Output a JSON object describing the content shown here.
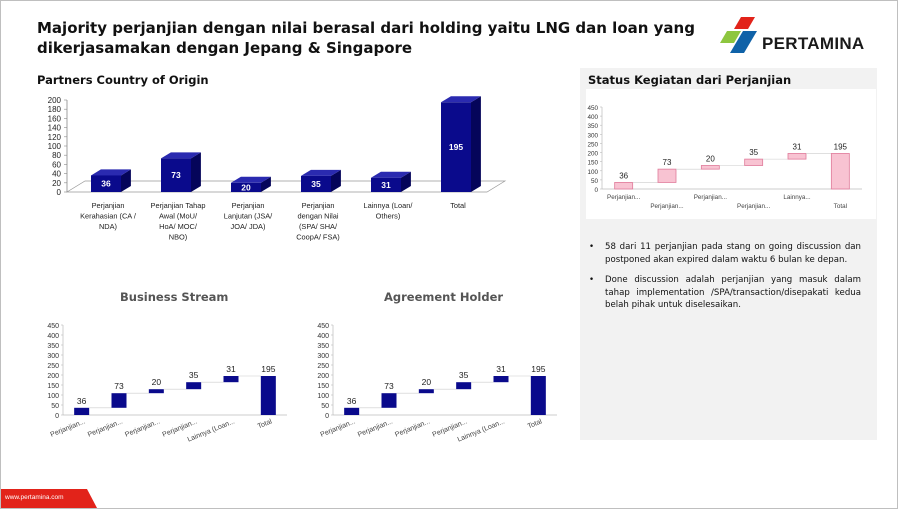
{
  "title": "Majority perjanjian dengan nilai berasal dari holding yaitu LNG dan loan yang dikerjasamakan dengan Jepang & Singapore",
  "logo": {
    "text": "PERTAMINA",
    "colors": {
      "red": "#e2231a",
      "green": "#8dc63f",
      "blue": "#0f62a8"
    }
  },
  "footer": {
    "url": "www.pertamina.com",
    "color": "#e2231a"
  },
  "bullets": [
    "58 dari 11 perjanjian pada stang on going discussion dan postponed akan expired dalam waktu 6 bulan ke depan.",
    "Done discussion adalah perjanjian yang masuk dalam tahap implementation /SPA/transaction/disepakati kedua belah pihak untuk diselesaikan."
  ],
  "chart_data": [
    {
      "type": "bar",
      "title": "Partners Country of Origin",
      "categories": [
        [
          "Perjanjian",
          "Kerahasian (CA /",
          "NDA)"
        ],
        [
          "Perjanjian Tahap",
          "Awal (MoU/",
          "HoA/ MOC/",
          "NBO)"
        ],
        [
          "Perjanjian",
          "Lanjutan (JSA/",
          "JOA/ JDA)"
        ],
        [
          "Perjanjian",
          "dengan Nilai",
          "(SPA/ SHA/",
          "CoopA/ FSA)"
        ],
        [
          "Lainnya (Loan/",
          "Others)"
        ],
        [
          "Total"
        ]
      ],
      "values": [
        36,
        73,
        20,
        35,
        31,
        195
      ],
      "ylim": [
        0,
        200
      ],
      "yticks": [
        0,
        20,
        40,
        60,
        80,
        100,
        120,
        140,
        160,
        180,
        200
      ],
      "color": "#0a0a8c",
      "style": "3d"
    },
    {
      "type": "bar",
      "title": "Business Stream",
      "subtype": "waterfall",
      "categories": [
        "Perjanjian...",
        "Perjanjian...",
        "Perjanjian...",
        "Perjanjian...",
        "Lainnya (Loan...",
        "Total"
      ],
      "values": [
        36,
        73,
        20,
        35,
        31,
        195
      ],
      "ylim": [
        0,
        450
      ],
      "yticks": [
        0,
        50,
        100,
        150,
        200,
        250,
        300,
        350,
        400,
        450
      ],
      "color": "#0a0a8c"
    },
    {
      "type": "bar",
      "title": "Agreement Holder",
      "subtype": "waterfall",
      "categories": [
        "Perjanjian...",
        "Perjanjian...",
        "Perjanjian...",
        "Perjanjian...",
        "Lainnya (Loan...",
        "Total"
      ],
      "values": [
        36,
        73,
        20,
        35,
        31,
        195
      ],
      "ylim": [
        0,
        450
      ],
      "yticks": [
        0,
        50,
        100,
        150,
        200,
        250,
        300,
        350,
        400,
        450
      ],
      "color": "#0a0a8c"
    },
    {
      "type": "bar",
      "title": "Status Kegiatan dari Perjanjian",
      "subtype": "waterfall",
      "categories": [
        "Perjanjian...",
        "Perjanjian...",
        "Perjanjian...",
        "Perjanjian...",
        "Lainnya...",
        "Total"
      ],
      "values": [
        36,
        73,
        20,
        35,
        31,
        195
      ],
      "ylim": [
        0,
        450
      ],
      "yticks": [
        0,
        50,
        100,
        150,
        200,
        250,
        300,
        350,
        400,
        450
      ],
      "color": "#f8c3d2",
      "border": "#e07a9a"
    }
  ]
}
